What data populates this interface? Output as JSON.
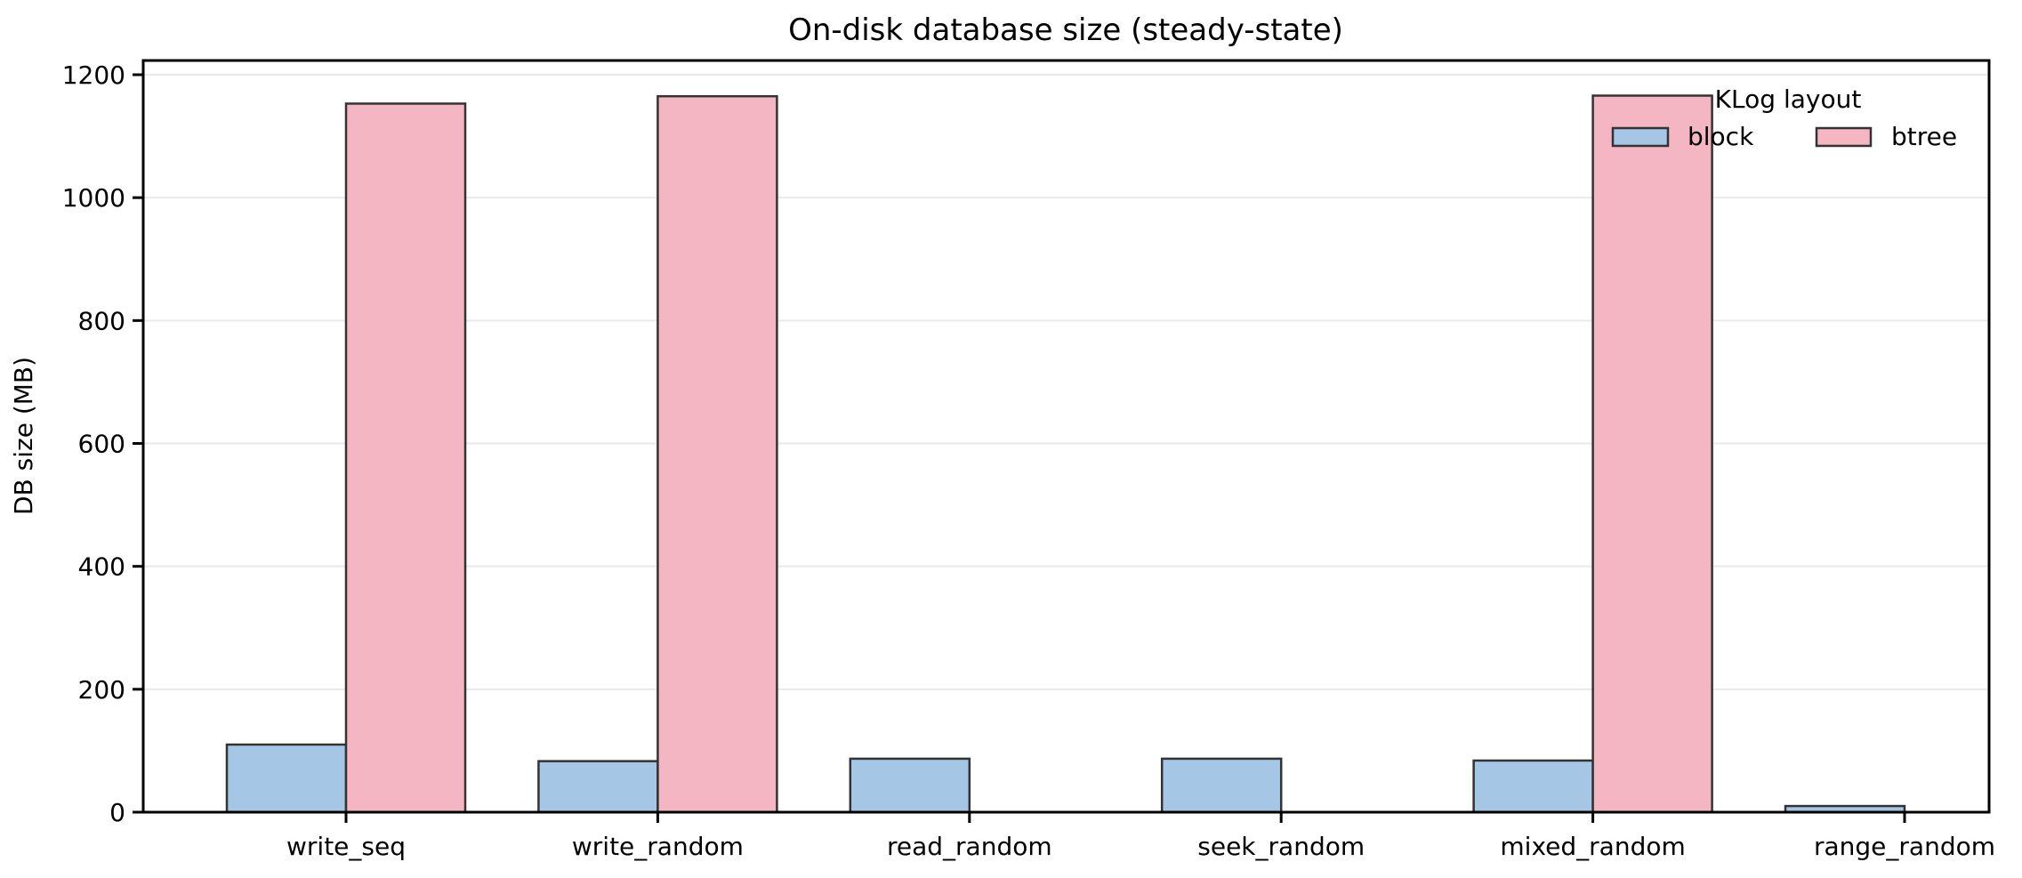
{
  "chart_data": {
    "type": "bar",
    "title": "On-disk database size (steady-state)",
    "xlabel": "",
    "ylabel": "DB size (MB)",
    "categories": [
      "write_seq",
      "write_random",
      "read_random",
      "seek_random",
      "mixed_random",
      "range_random"
    ],
    "series": [
      {
        "name": "block",
        "color": "#a5c6e4",
        "values": [
          110,
          83,
          87,
          87,
          84,
          10
        ]
      },
      {
        "name": "btree",
        "color": "#f4b6c2",
        "values": [
          1153,
          1165,
          0,
          0,
          1166,
          0
        ]
      }
    ],
    "ylim": [
      0,
      1200
    ],
    "yticks": [
      0,
      200,
      400,
      600,
      800,
      1000,
      1200
    ],
    "grid": true,
    "grid_color": "#e9e9e9",
    "bar_edge_color": "#333333",
    "spine_color": "#000000",
    "legend": {
      "title": "KLog layout",
      "position": "upper right",
      "entries": [
        "block",
        "btree"
      ]
    }
  }
}
